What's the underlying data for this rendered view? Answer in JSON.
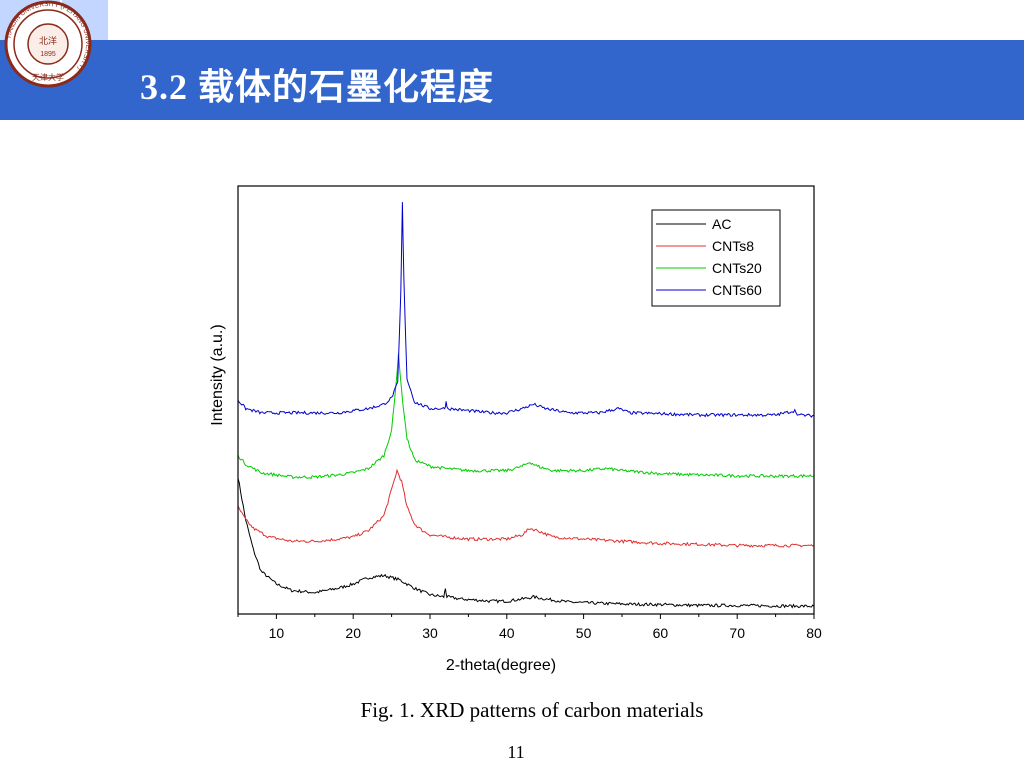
{
  "slide": {
    "title": "3.2 载体的石墨化程度",
    "caption": "Fig. 1. XRD patterns of carbon materials",
    "page_number": "11",
    "colors": {
      "header": "#3366cc",
      "accent_light": "#8fb4ff"
    }
  },
  "logo": {
    "name": "university-seal-icon",
    "text_ring": "TIANJIN UNIVERSITY (PEIYANG UNIVERSITY)",
    "center_text": "北洋",
    "year": "1895",
    "bottom_text": "天津大学"
  },
  "chart_data": {
    "type": "line",
    "xlabel": "2-theta(degree)",
    "ylabel": "Intensity (a.u.)",
    "xlim": [
      5,
      80
    ],
    "ylim": [
      0,
      100
    ],
    "xticks": [
      10,
      20,
      30,
      40,
      50,
      60,
      70,
      80
    ],
    "legend_position": "top-right",
    "series": [
      {
        "name": "AC",
        "color": "#000000",
        "points": [
          [
            5,
            32
          ],
          [
            6,
            22
          ],
          [
            7,
            15
          ],
          [
            8,
            10
          ],
          [
            10,
            7
          ],
          [
            12,
            5.5
          ],
          [
            15,
            5
          ],
          [
            18,
            6
          ],
          [
            20,
            7
          ],
          [
            22,
            8.5
          ],
          [
            24,
            9
          ],
          [
            26,
            8
          ],
          [
            28,
            6
          ],
          [
            30,
            4.5
          ],
          [
            31.8,
            4
          ],
          [
            32,
            6
          ],
          [
            32.2,
            4
          ],
          [
            34,
            3.5
          ],
          [
            38,
            3
          ],
          [
            40,
            3
          ],
          [
            42,
            3.5
          ],
          [
            43.5,
            4
          ],
          [
            45,
            3.5
          ],
          [
            48,
            2.8
          ],
          [
            52,
            2.5
          ],
          [
            56,
            2.3
          ],
          [
            60,
            2.2
          ],
          [
            65,
            2
          ],
          [
            70,
            2
          ],
          [
            75,
            1.9
          ],
          [
            80,
            1.8
          ]
        ]
      },
      {
        "name": "CNTs8",
        "color": "#e03030",
        "points": [
          [
            5,
            25
          ],
          [
            6,
            22
          ],
          [
            7,
            20
          ],
          [
            9,
            18
          ],
          [
            12,
            17
          ],
          [
            15,
            17
          ],
          [
            18,
            17.5
          ],
          [
            20,
            18
          ],
          [
            22,
            19.5
          ],
          [
            24,
            23
          ],
          [
            25,
            29
          ],
          [
            25.7,
            33.5
          ],
          [
            26.3,
            31
          ],
          [
            27,
            25
          ],
          [
            28,
            21
          ],
          [
            29,
            19.5
          ],
          [
            30,
            18.5
          ],
          [
            32,
            18
          ],
          [
            35,
            17.5
          ],
          [
            38,
            17.5
          ],
          [
            40,
            17.5
          ],
          [
            42,
            18.5
          ],
          [
            43,
            20
          ],
          [
            44,
            19.5
          ],
          [
            46,
            18
          ],
          [
            50,
            17.5
          ],
          [
            55,
            17
          ],
          [
            60,
            16.5
          ],
          [
            65,
            16.3
          ],
          [
            70,
            16
          ],
          [
            75,
            16
          ],
          [
            80,
            16
          ]
        ]
      },
      {
        "name": "CNTs20",
        "color": "#00cc00",
        "points": [
          [
            5,
            37
          ],
          [
            6,
            35
          ],
          [
            8,
            33
          ],
          [
            10,
            32.5
          ],
          [
            12,
            32
          ],
          [
            15,
            32
          ],
          [
            18,
            32.5
          ],
          [
            20,
            33
          ],
          [
            22,
            34
          ],
          [
            24,
            37
          ],
          [
            25,
            43
          ],
          [
            25.5,
            52
          ],
          [
            25.9,
            61
          ],
          [
            26.3,
            52
          ],
          [
            27,
            41
          ],
          [
            28,
            36
          ],
          [
            30,
            34.5
          ],
          [
            32,
            34
          ],
          [
            35,
            33.5
          ],
          [
            38,
            33.5
          ],
          [
            40,
            33.5
          ],
          [
            42,
            34.5
          ],
          [
            43,
            35.5
          ],
          [
            44,
            34.5
          ],
          [
            46,
            33.5
          ],
          [
            50,
            33.5
          ],
          [
            53,
            34
          ],
          [
            55,
            33.5
          ],
          [
            60,
            32.8
          ],
          [
            65,
            32.5
          ],
          [
            70,
            32.3
          ],
          [
            75,
            32.2
          ],
          [
            80,
            32.3
          ]
        ]
      },
      {
        "name": "CNTs60",
        "color": "#0000cc",
        "points": [
          [
            5,
            50
          ],
          [
            6,
            48
          ],
          [
            8,
            47
          ],
          [
            10,
            47
          ],
          [
            12,
            47
          ],
          [
            15,
            47
          ],
          [
            18,
            47
          ],
          [
            20,
            47.5
          ],
          [
            22,
            48
          ],
          [
            24,
            49
          ],
          [
            25,
            50.5
          ],
          [
            25.8,
            54
          ],
          [
            26.2,
            75
          ],
          [
            26.4,
            96
          ],
          [
            26.6,
            78
          ],
          [
            27,
            55
          ],
          [
            28,
            49.5
          ],
          [
            30,
            48
          ],
          [
            31.9,
            48
          ],
          [
            32.1,
            49.5
          ],
          [
            32.3,
            48
          ],
          [
            35,
            47.5
          ],
          [
            38,
            47
          ],
          [
            40,
            47
          ],
          [
            42,
            48
          ],
          [
            43.5,
            49
          ],
          [
            45,
            48
          ],
          [
            48,
            47
          ],
          [
            52,
            47
          ],
          [
            54.5,
            48
          ],
          [
            56,
            47
          ],
          [
            60,
            46.8
          ],
          [
            65,
            46.5
          ],
          [
            70,
            46.5
          ],
          [
            75,
            46.5
          ],
          [
            77.5,
            47.5
          ],
          [
            78,
            46.5
          ],
          [
            80,
            46.3
          ]
        ]
      }
    ]
  }
}
